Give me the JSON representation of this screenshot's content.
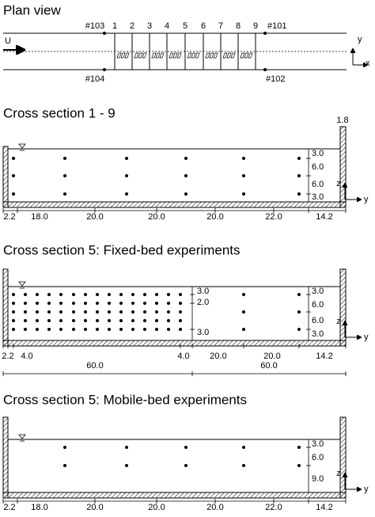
{
  "plan_view": {
    "title": "Plan view",
    "flow_label": "U",
    "gauges": [
      "#103",
      "#101",
      "#104",
      "#102"
    ],
    "sections": [
      "1",
      "2",
      "3",
      "4",
      "5",
      "6",
      "7",
      "8",
      "9"
    ],
    "axes": [
      "y",
      "x"
    ]
  },
  "cross_section_1_9": {
    "title": "Cross section 1 - 9",
    "wall_label": "1.8",
    "depth_dims": [
      "3.0",
      "6.0",
      "6.0",
      "3.0"
    ],
    "width_dims": [
      "2.2",
      "18.0",
      "20.0",
      "20.0",
      "20.0",
      "22.0",
      "14.2"
    ],
    "axes": [
      "z",
      "y"
    ]
  },
  "cross_section_5_fixed": {
    "title": "Cross section 5: Fixed-bed experiments",
    "dense_depth_dims": [
      "3.0",
      "2.0",
      "3.0"
    ],
    "depth_dims": [
      "3.0",
      "6.0",
      "6.0",
      "3.0"
    ],
    "width_dims": [
      "2.2",
      "4.0",
      "4.0",
      "20.0",
      "20.0",
      "14.2"
    ],
    "span_dims": [
      "60.0",
      "60.0"
    ],
    "axes": [
      "z",
      "y"
    ]
  },
  "cross_section_5_mobile": {
    "title": "Cross section 5: Mobile-bed experiments",
    "depth_dims": [
      "3.0",
      "6.0",
      "9.0"
    ],
    "width_dims": [
      "2.2",
      "18.0",
      "20.0",
      "20.0",
      "20.0",
      "22.0",
      "14.2"
    ],
    "axes": [
      "z",
      "y"
    ]
  }
}
